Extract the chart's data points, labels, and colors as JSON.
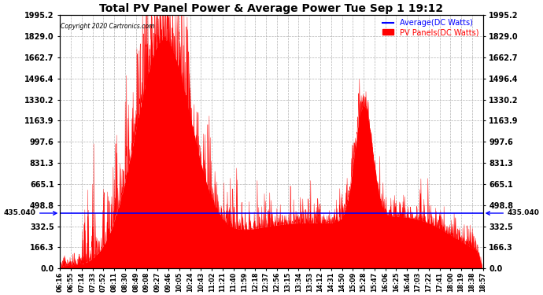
{
  "title": "Total PV Panel Power & Average Power Tue Sep 1 19:12",
  "copyright": "Copyright 2020 Cartronics.com",
  "legend_avg": "Average(DC Watts)",
  "legend_pv": "PV Panels(DC Watts)",
  "avg_value": 435.04,
  "ymax": 1995.2,
  "ymin": 0.0,
  "yticks": [
    0.0,
    166.3,
    332.5,
    498.8,
    665.1,
    831.3,
    997.6,
    1163.9,
    1330.2,
    1496.4,
    1662.7,
    1829.0,
    1995.2
  ],
  "xtick_labels": [
    "06:16",
    "06:55",
    "07:14",
    "07:33",
    "07:52",
    "08:11",
    "08:30",
    "08:49",
    "09:08",
    "09:27",
    "09:46",
    "10:05",
    "10:24",
    "10:43",
    "11:02",
    "11:21",
    "11:40",
    "11:59",
    "12:18",
    "12:37",
    "12:56",
    "13:15",
    "13:34",
    "13:53",
    "14:12",
    "14:31",
    "14:50",
    "15:09",
    "15:28",
    "15:47",
    "16:06",
    "16:25",
    "16:44",
    "17:03",
    "17:22",
    "17:41",
    "18:00",
    "18:19",
    "18:38",
    "18:57"
  ],
  "pv_color": "#ff0000",
  "avg_color": "#0000ff",
  "avg_label_color": "#0000ff",
  "pv_label_color": "#ff0000",
  "background_color": "#ffffff",
  "grid_color": "#aaaaaa",
  "title_color": "#000000",
  "copyright_color": "#000000",
  "avg_line_style": "-",
  "figsize": [
    6.9,
    3.75
  ],
  "dpi": 100
}
